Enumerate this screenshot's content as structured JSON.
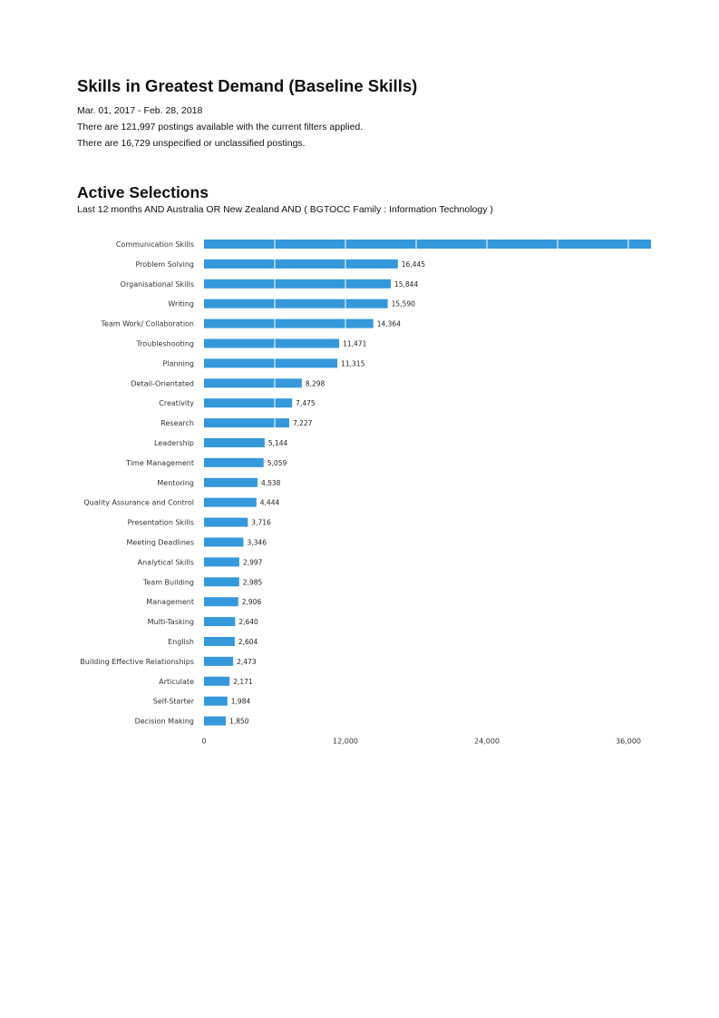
{
  "report": {
    "title": "Skills in Greatest Demand (Baseline Skills)",
    "date_range": "Mar. 01, 2017  - Feb. 28, 2018",
    "postings_text": "There are 121,997 postings available with the current filters applied.",
    "unspecified_text": "There are 16,729 unspecified or unclassified postings."
  },
  "selections": {
    "title": "Active Selections",
    "filter_text": "Last 12 months AND Australia OR New Zealand AND ( BGTOCC Family : Information Technology )"
  },
  "chart_data": {
    "type": "bar",
    "orientation": "horizontal",
    "categories": [
      "Communication Skills",
      "Problem Solving",
      "Organisational Skills",
      "Writing",
      "Team Work/ Collaboration",
      "Troubleshooting",
      "Planning",
      "Detail-Orientated",
      "Creativity",
      "Research",
      "Leadership",
      "Time Management",
      "Mentoring",
      "Quality Assurance and Control",
      "Presentation Skills",
      "Meeting Deadlines",
      "Analytical Skills",
      "Team Building",
      "Management",
      "Multi-Tasking",
      "English",
      "Building Effective Relationships",
      "Articulate",
      "Self-Starter",
      "Decision Making"
    ],
    "values": [
      38000,
      16445,
      15844,
      15590,
      14364,
      11471,
      11315,
      8298,
      7475,
      7227,
      5144,
      5059,
      4538,
      4444,
      3716,
      3346,
      2997,
      2985,
      2906,
      2640,
      2604,
      2473,
      2171,
      1984,
      1850
    ],
    "value_labels": [
      "",
      "16,445",
      "15,844",
      "15,590",
      "14,364",
      "11,471",
      "11,315",
      "8,298",
      "7,475",
      "7,227",
      "5,144",
      "5,059",
      "4,538",
      "4,444",
      "3,716",
      "3,346",
      "2,997",
      "2,985",
      "2,906",
      "2,640",
      "2,604",
      "2,473",
      "2,171",
      "1,984",
      "1,850"
    ],
    "x_ticks": [
      0,
      12000,
      24000,
      36000
    ],
    "x_tick_labels": [
      "0",
      "12,000",
      "24,000",
      "36,000"
    ],
    "xlim": [
      0,
      38000
    ],
    "grid": true,
    "bar_color": "#3498db"
  }
}
